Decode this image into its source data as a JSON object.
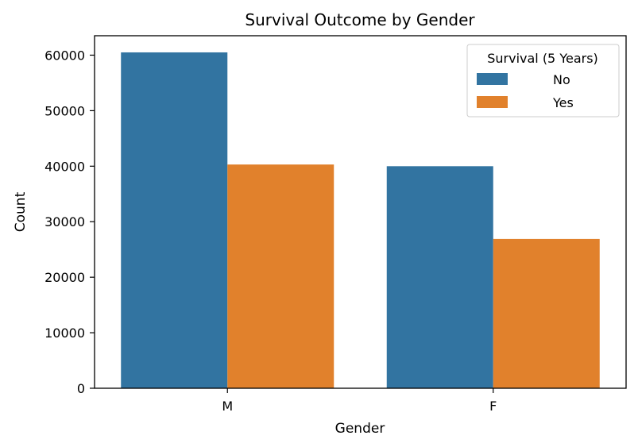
{
  "chart_data": {
    "type": "bar",
    "title": "Survival Outcome by Gender",
    "xlabel": "Gender",
    "ylabel": "Count",
    "categories": [
      "M",
      "F"
    ],
    "series": [
      {
        "name": "No",
        "color": "#3274a1",
        "values": [
          60500,
          40000
        ]
      },
      {
        "name": "Yes",
        "color": "#e1812c",
        "values": [
          40300,
          26900
        ]
      }
    ],
    "ylim": [
      0,
      63500
    ],
    "yticks": [
      0,
      10000,
      20000,
      30000,
      40000,
      50000,
      60000
    ],
    "ytick_labels": [
      "0",
      "10000",
      "20000",
      "30000",
      "40000",
      "50000",
      "60000"
    ],
    "grid": false,
    "legend": {
      "title": "Survival (5 Years)",
      "position": "top-right"
    }
  }
}
